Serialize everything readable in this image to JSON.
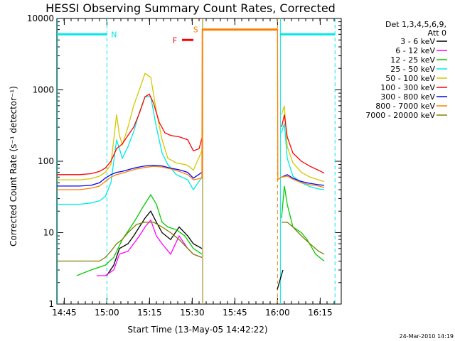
{
  "chart_data": {
    "type": "line",
    "title": "HESSI Observing Summary Count Rates, Corrected",
    "xlabel": "Start Time (13-May-05 14:42:22)",
    "ylabel": "Corrected Count Rate (s⁻¹ detector⁻¹)",
    "yscale": "log",
    "ylim": [
      1,
      10000
    ],
    "xlim_minutes": [
      0,
      100
    ],
    "x_unit": "minutes since 14:42:22",
    "yticks": [
      "1",
      "10",
      "100",
      "1000",
      "10000"
    ],
    "xticks": [
      {
        "label": "14:45",
        "t": 2.6
      },
      {
        "label": "15:00",
        "t": 17.6
      },
      {
        "label": "15:15",
        "t": 32.6
      },
      {
        "label": "15:30",
        "t": 47.6
      },
      {
        "label": "15:45",
        "t": 62.6
      },
      {
        "label": "16:00",
        "t": 77.6
      },
      {
        "label": "16:15",
        "t": 92.6
      }
    ],
    "legend": {
      "header": [
        "Det 1,3,4,5,6,9,",
        "Att 0"
      ],
      "placement": "right"
    },
    "series": [
      {
        "name": "3 - 6 keV",
        "color": "#000000",
        "segments": [
          [
            [
              17.5,
              2.5
            ],
            [
              20,
              3.5
            ],
            [
              22,
              6
            ],
            [
              25,
              7
            ],
            [
              27,
              9
            ],
            [
              29,
              12
            ],
            [
              31,
              16
            ],
            [
              33,
              20
            ],
            [
              35,
              14
            ],
            [
              37,
              10
            ],
            [
              40,
              8
            ],
            [
              43,
              12
            ],
            [
              46,
              9
            ],
            [
              48,
              7
            ],
            [
              51,
              6
            ]
          ],
          [
            [
              77.5,
              1.6
            ],
            [
              78.5,
              2.2
            ],
            [
              79.5,
              3
            ]
          ]
        ]
      },
      {
        "name": "6 - 12 keV",
        "color": "#ff00ff",
        "segments": [
          [
            [
              14,
              2.5
            ],
            [
              17,
              2.5
            ],
            [
              20,
              3
            ],
            [
              22,
              5
            ],
            [
              25,
              5.5
            ],
            [
              27,
              7
            ],
            [
              29,
              9
            ],
            [
              31,
              12
            ],
            [
              33,
              15
            ],
            [
              35,
              9
            ],
            [
              37,
              7
            ],
            [
              40,
              5
            ],
            [
              43,
              9
            ],
            [
              46,
              6
            ],
            [
              48,
              5
            ],
            [
              51,
              4.5
            ]
          ]
        ]
      },
      {
        "name": "12 - 25 keV",
        "color": "#00cc00",
        "segments": [
          [
            [
              7,
              2.5
            ],
            [
              12,
              3
            ],
            [
              17,
              3.5
            ],
            [
              20,
              4.5
            ],
            [
              23,
              8
            ],
            [
              26,
              12
            ],
            [
              28,
              16
            ],
            [
              30,
              22
            ],
            [
              33,
              34
            ],
            [
              35,
              25
            ],
            [
              37,
              14
            ],
            [
              39,
              12
            ],
            [
              42,
              11
            ],
            [
              45,
              9
            ],
            [
              48,
              6
            ],
            [
              51,
              5
            ]
          ],
          [
            [
              79,
              16
            ],
            [
              80,
              45
            ],
            [
              81,
              25
            ],
            [
              83,
              12
            ],
            [
              86,
              10
            ],
            [
              88,
              8
            ],
            [
              91,
              5
            ],
            [
              94,
              4
            ]
          ]
        ]
      },
      {
        "name": "25 - 50 keV",
        "color": "#00e8e8",
        "segments": [
          [
            [
              0,
              25
            ],
            [
              8,
              25
            ],
            [
              12,
              26
            ],
            [
              15,
              28
            ],
            [
              17,
              32
            ],
            [
              19,
              50
            ],
            [
              21,
              200
            ],
            [
              22,
              150
            ],
            [
              23,
              110
            ],
            [
              25,
              160
            ],
            [
              27,
              260
            ],
            [
              29,
              480
            ],
            [
              31,
              800
            ],
            [
              33,
              800
            ],
            [
              35,
              300
            ],
            [
              37,
              130
            ],
            [
              39,
              90
            ],
            [
              42,
              65
            ],
            [
              46,
              55
            ],
            [
              48,
              40
            ],
            [
              51,
              60
            ]
          ],
          [
            [
              79,
              250
            ],
            [
              80,
              340
            ],
            [
              81,
              110
            ],
            [
              83,
              62
            ],
            [
              86,
              50
            ],
            [
              89,
              44
            ],
            [
              92,
              41
            ],
            [
              94,
              40
            ]
          ]
        ]
      },
      {
        "name": "50 - 100 keV",
        "color": "#d4c800",
        "segments": [
          [
            [
              0,
              55
            ],
            [
              8,
              55
            ],
            [
              12,
              57
            ],
            [
              15,
              62
            ],
            [
              17,
              70
            ],
            [
              19,
              90
            ],
            [
              21,
              450
            ],
            [
              22,
              230
            ],
            [
              23,
              170
            ],
            [
              25,
              300
            ],
            [
              27,
              600
            ],
            [
              29,
              1000
            ],
            [
              31,
              1700
            ],
            [
              33,
              1500
            ],
            [
              35,
              500
            ],
            [
              37,
              200
            ],
            [
              39,
              110
            ],
            [
              42,
              95
            ],
            [
              46,
              88
            ],
            [
              48,
              75
            ],
            [
              51,
              140
            ]
          ],
          [
            [
              79,
              450
            ],
            [
              80,
              600
            ],
            [
              81,
              160
            ],
            [
              83,
              95
            ],
            [
              86,
              70
            ],
            [
              89,
              60
            ],
            [
              92,
              55
            ],
            [
              94,
              52
            ]
          ]
        ]
      },
      {
        "name": "100 - 300 keV",
        "color": "#ff0000",
        "segments": [
          [
            [
              0,
              65
            ],
            [
              8,
              65
            ],
            [
              12,
              67
            ],
            [
              15,
              72
            ],
            [
              17,
              80
            ],
            [
              19,
              100
            ],
            [
              21,
              150
            ],
            [
              23,
              175
            ],
            [
              25,
              230
            ],
            [
              27,
              300
            ],
            [
              29,
              470
            ],
            [
              31,
              800
            ],
            [
              32.5,
              870
            ],
            [
              34,
              650
            ],
            [
              36,
              350
            ],
            [
              38,
              250
            ],
            [
              40,
              230
            ],
            [
              43,
              220
            ],
            [
              46,
              200
            ],
            [
              48,
              140
            ],
            [
              50,
              150
            ],
            [
              51,
              210
            ]
          ],
          [
            [
              79,
              300
            ],
            [
              80,
              450
            ],
            [
              81,
              220
            ],
            [
              83,
              130
            ],
            [
              86,
              100
            ],
            [
              89,
              85
            ],
            [
              92,
              75
            ],
            [
              94,
              68
            ]
          ]
        ]
      },
      {
        "name": "300 - 800 keV",
        "color": "#0000ff",
        "segments": [
          [
            [
              0,
              45
            ],
            [
              8,
              45
            ],
            [
              12,
              46
            ],
            [
              15,
              50
            ],
            [
              17,
              58
            ],
            [
              19,
              65
            ],
            [
              21,
              70
            ],
            [
              23,
              72
            ],
            [
              25,
              76
            ],
            [
              28,
              82
            ],
            [
              31,
              86
            ],
            [
              34,
              88
            ],
            [
              37,
              86
            ],
            [
              40,
              80
            ],
            [
              43,
              76
            ],
            [
              46,
              70
            ],
            [
              48,
              58
            ],
            [
              51,
              70
            ]
          ],
          [
            [
              79,
              60
            ],
            [
              81,
              65
            ],
            [
              83,
              58
            ],
            [
              86,
              52
            ],
            [
              89,
              49
            ],
            [
              92,
              47
            ],
            [
              94,
              46
            ]
          ]
        ]
      },
      {
        "name": "800 - 7000 keV",
        "color": "#ff8000",
        "segments": [
          [
            [
              0,
              40
            ],
            [
              8,
              40
            ],
            [
              12,
              42
            ],
            [
              15,
              45
            ],
            [
              17,
              52
            ],
            [
              19,
              60
            ],
            [
              21,
              65
            ],
            [
              23,
              68
            ],
            [
              25,
              72
            ],
            [
              28,
              78
            ],
            [
              31,
              82
            ],
            [
              34,
              85
            ],
            [
              37,
              83
            ],
            [
              40,
              78
            ],
            [
              43,
              72
            ],
            [
              46,
              65
            ],
            [
              48,
              55
            ],
            [
              51,
              58
            ],
            [
              51.1,
              7000
            ],
            [
              77.6,
              7000
            ],
            [
              77.7,
              55
            ],
            [
              79,
              60
            ],
            [
              81,
              62
            ],
            [
              83,
              56
            ],
            [
              86,
              50
            ],
            [
              89,
              47
            ],
            [
              92,
              45
            ],
            [
              94,
              43
            ]
          ]
        ]
      },
      {
        "name": "7000 - 20000 keV",
        "color": "#808000",
        "segments": [
          [
            [
              0,
              4
            ],
            [
              8,
              4
            ],
            [
              12,
              4
            ],
            [
              15,
              4
            ],
            [
              17,
              4.5
            ],
            [
              19,
              5.5
            ],
            [
              21,
              7
            ],
            [
              23,
              8
            ],
            [
              25,
              10
            ],
            [
              28,
              13
            ],
            [
              31,
              14
            ],
            [
              34,
              14
            ],
            [
              37,
              12
            ],
            [
              40,
              10
            ],
            [
              43,
              8
            ],
            [
              46,
              6
            ],
            [
              48,
              5
            ],
            [
              51,
              4.5
            ]
          ],
          [
            [
              79,
              14
            ],
            [
              81,
              14
            ],
            [
              83,
              12
            ],
            [
              86,
              9
            ],
            [
              89,
              7
            ],
            [
              92,
              5.5
            ],
            [
              94,
              5
            ]
          ]
        ]
      }
    ],
    "attenuator_bars": [
      {
        "color": "#00e8e8",
        "from": 0,
        "to": 17.6,
        "y": 6000
      },
      {
        "color": "#00e8e8",
        "from": 78.6,
        "to": 97.8,
        "y": 6000
      }
    ],
    "flare_bar": {
      "label": "F",
      "color": "#ff0000",
      "from": 44,
      "to": 48,
      "y": 5000
    },
    "saa_bar": {
      "label": "S",
      "color": "#ff8000",
      "from": 51.3,
      "to": 77.6,
      "y": 7000
    },
    "night_marker": {
      "label": "N",
      "color": "#00e8e8"
    },
    "vlines": [
      {
        "t": 17.6,
        "color": "#00e8e8",
        "style": "dashed"
      },
      {
        "t": 51.2,
        "color": "#00e8e8",
        "style": "solid"
      },
      {
        "t": 51.3,
        "color": "#ff8000",
        "style": "solid"
      },
      {
        "t": 77.6,
        "color": "#ff8000",
        "style": "dashed"
      },
      {
        "t": 78.6,
        "color": "#00e8e8",
        "style": "solid"
      },
      {
        "t": 97.8,
        "color": "#00e8e8",
        "style": "dashed"
      },
      {
        "t": 0.2,
        "color": "#00e8e8",
        "style": "solid"
      }
    ]
  },
  "footer": {
    "date": "24-Mar-2010 14:19"
  }
}
